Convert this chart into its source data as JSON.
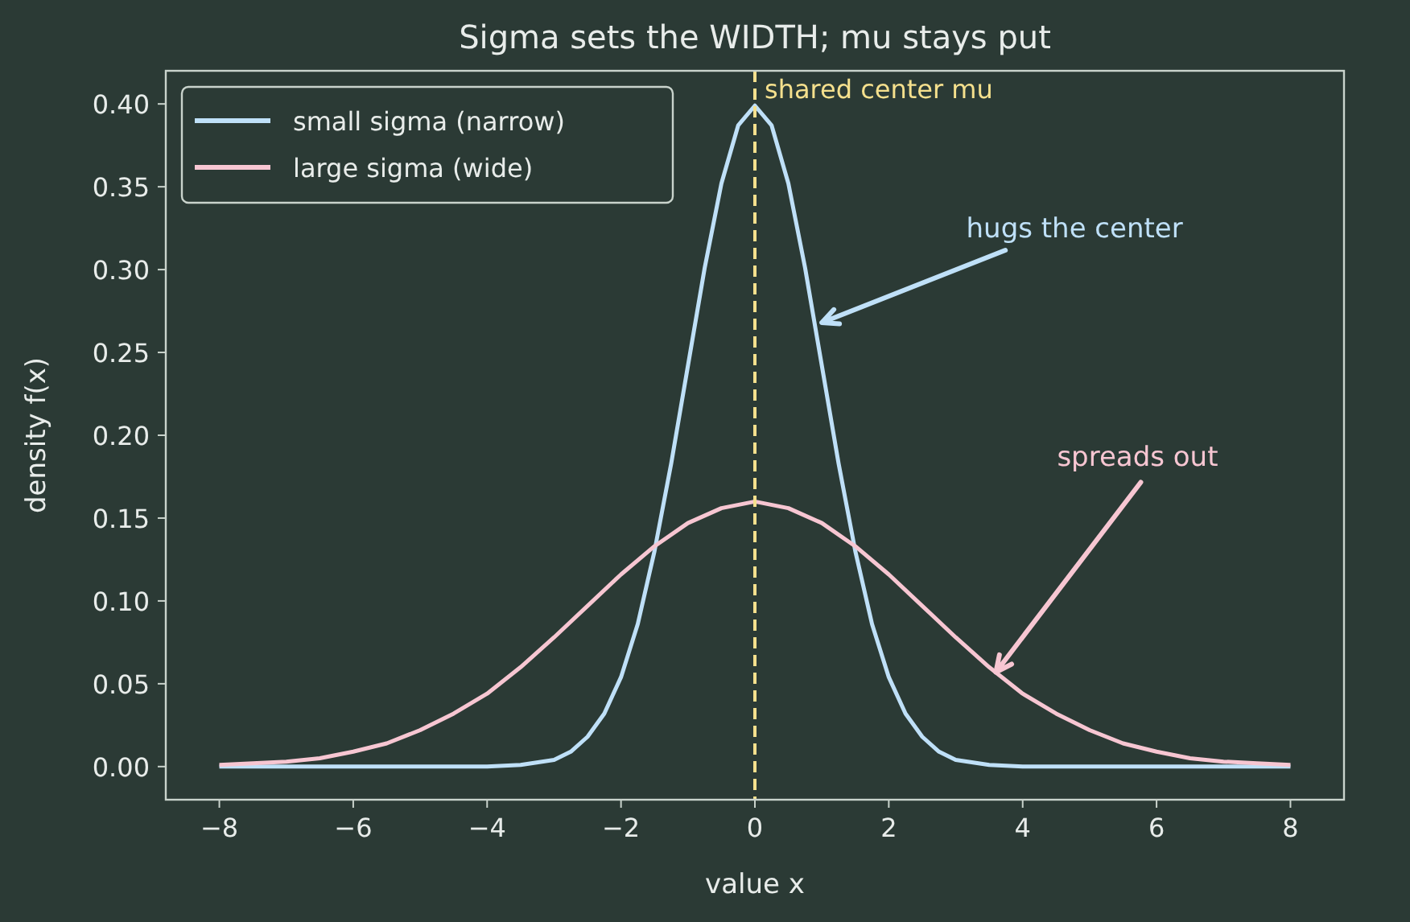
{
  "chart_data": {
    "type": "line",
    "title": "Sigma sets the WIDTH; mu stays put",
    "xlabel": "value  x",
    "ylabel": "density  f(x)",
    "xlim": [
      -8.8,
      8.8
    ],
    "xticks": [
      {
        "value": -8,
        "label": "−8"
      },
      {
        "value": -6,
        "label": "−6"
      },
      {
        "value": -4,
        "label": "−4"
      },
      {
        "value": -2,
        "label": "−2"
      },
      0,
      2,
      4,
      6,
      8
    ],
    "ylim": [
      -0.02,
      0.42
    ],
    "yticks": [
      {
        "value": 0,
        "label": "0.00"
      },
      {
        "value": 0.05,
        "label": "0.05"
      },
      {
        "value": 0.1,
        "label": "0.10"
      },
      {
        "value": 0.15,
        "label": "0.15"
      },
      {
        "value": 0.2,
        "label": "0.20"
      },
      {
        "value": 0.25,
        "label": "0.25"
      },
      {
        "value": 0.3,
        "label": "0.30"
      },
      {
        "value": 0.35,
        "label": "0.35"
      },
      {
        "value": 0.4,
        "label": "0.40"
      }
    ],
    "series": [
      {
        "name": "small sigma (narrow)",
        "color": "#bfe0f8",
        "x": [
          -8,
          -6,
          -5,
          -4,
          -3.5,
          -3,
          -2.75,
          -2.5,
          -2.25,
          -2,
          -1.75,
          -1.5,
          -1.25,
          -1,
          -0.75,
          -0.5,
          -0.25,
          0,
          0.25,
          0.5,
          0.75,
          1,
          1.25,
          1.5,
          1.75,
          2,
          2.25,
          2.5,
          2.75,
          3,
          3.5,
          4,
          5,
          6,
          8
        ],
        "values": [
          0,
          0,
          0,
          0,
          0.001,
          0.004,
          0.009,
          0.018,
          0.032,
          0.054,
          0.086,
          0.13,
          0.183,
          0.242,
          0.301,
          0.352,
          0.387,
          0.399,
          0.387,
          0.352,
          0.301,
          0.242,
          0.183,
          0.13,
          0.086,
          0.054,
          0.032,
          0.018,
          0.009,
          0.004,
          0.001,
          0,
          0,
          0,
          0
        ]
      },
      {
        "name": "large sigma (wide)",
        "color": "#f7c6d2",
        "x": [
          -8,
          -7.5,
          -7,
          -6.5,
          -6,
          -5.5,
          -5,
          -4.5,
          -4,
          -3.5,
          -3,
          -2.5,
          -2,
          -1.5,
          -1,
          -0.5,
          0,
          0.5,
          1,
          1.5,
          2,
          2.5,
          3,
          3.5,
          4,
          4.5,
          5,
          5.5,
          6,
          6.5,
          7,
          7.5,
          8
        ],
        "values": [
          0.001,
          0.002,
          0.003,
          0.005,
          0.009,
          0.014,
          0.022,
          0.032,
          0.044,
          0.06,
          0.078,
          0.097,
          0.116,
          0.133,
          0.147,
          0.156,
          0.16,
          0.156,
          0.147,
          0.133,
          0.116,
          0.097,
          0.078,
          0.06,
          0.044,
          0.032,
          0.022,
          0.014,
          0.009,
          0.005,
          0.003,
          0.002,
          0.001
        ]
      }
    ],
    "ref_lines": [
      {
        "axis": "x",
        "value": 0,
        "label": "shared center mu",
        "color": "#f5e08d",
        "line_style": "dashed"
      }
    ],
    "annotations": [
      {
        "text": "hugs the center",
        "x": 1.0,
        "y": 0.268
      },
      {
        "text": "spreads out",
        "x": 3.6,
        "y": 0.057
      }
    ],
    "legend": "top left",
    "grid": false,
    "marker": "none",
    "line_style": "solid"
  }
}
